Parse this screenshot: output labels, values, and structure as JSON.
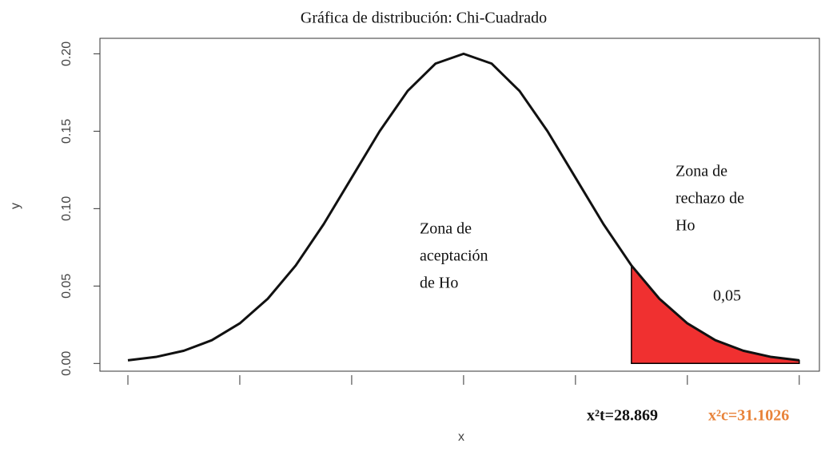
{
  "chart_data": {
    "type": "line",
    "title": "Gráfica de distribución: Chi-Cuadrado",
    "x_label": "x",
    "y_label": "y",
    "x": [
      0,
      0.25,
      0.5,
      0.75,
      1,
      1.25,
      1.5,
      1.75,
      2,
      2.25,
      2.5,
      2.75,
      3,
      3.25,
      3.5,
      3.75,
      4,
      4.25,
      4.5,
      4.75,
      5,
      5.25,
      5.5,
      5.75,
      6
    ],
    "series": [
      {
        "color": "#111111",
        "values": [
          0.002,
          0.0042,
          0.0082,
          0.015,
          0.0259,
          0.0418,
          0.0633,
          0.09,
          0.12,
          0.15,
          0.176,
          0.1937,
          0.2,
          0.1937,
          0.176,
          0.15,
          0.12,
          0.09,
          0.0633,
          0.0418,
          0.0259,
          0.015,
          0.0082,
          0.0042,
          0.002
        ]
      }
    ],
    "shade_xlim": [
      4.5,
      6
    ],
    "shade_color": "#f03030",
    "xlim": [
      -0.25,
      6.18
    ],
    "xticks": [
      0,
      1,
      2,
      3,
      4,
      5,
      6
    ],
    "ylim": [
      -0.005,
      0.21
    ],
    "yticks": [
      {
        "value": 0,
        "label": "0.00"
      },
      0.05,
      {
        "value": 0.1,
        "label": "0.10"
      },
      0.15,
      {
        "value": 0.2,
        "label": "0.20"
      }
    ],
    "annotations": {
      "acceptance": [
        "Zona de",
        "aceptación",
        "de Ho"
      ],
      "rejection": [
        "Zona de",
        "rechazo de",
        "Ho"
      ],
      "alpha": "0,05",
      "critical_table": "x²t=28.869",
      "critical_calc": "x²c=31.1026"
    }
  }
}
